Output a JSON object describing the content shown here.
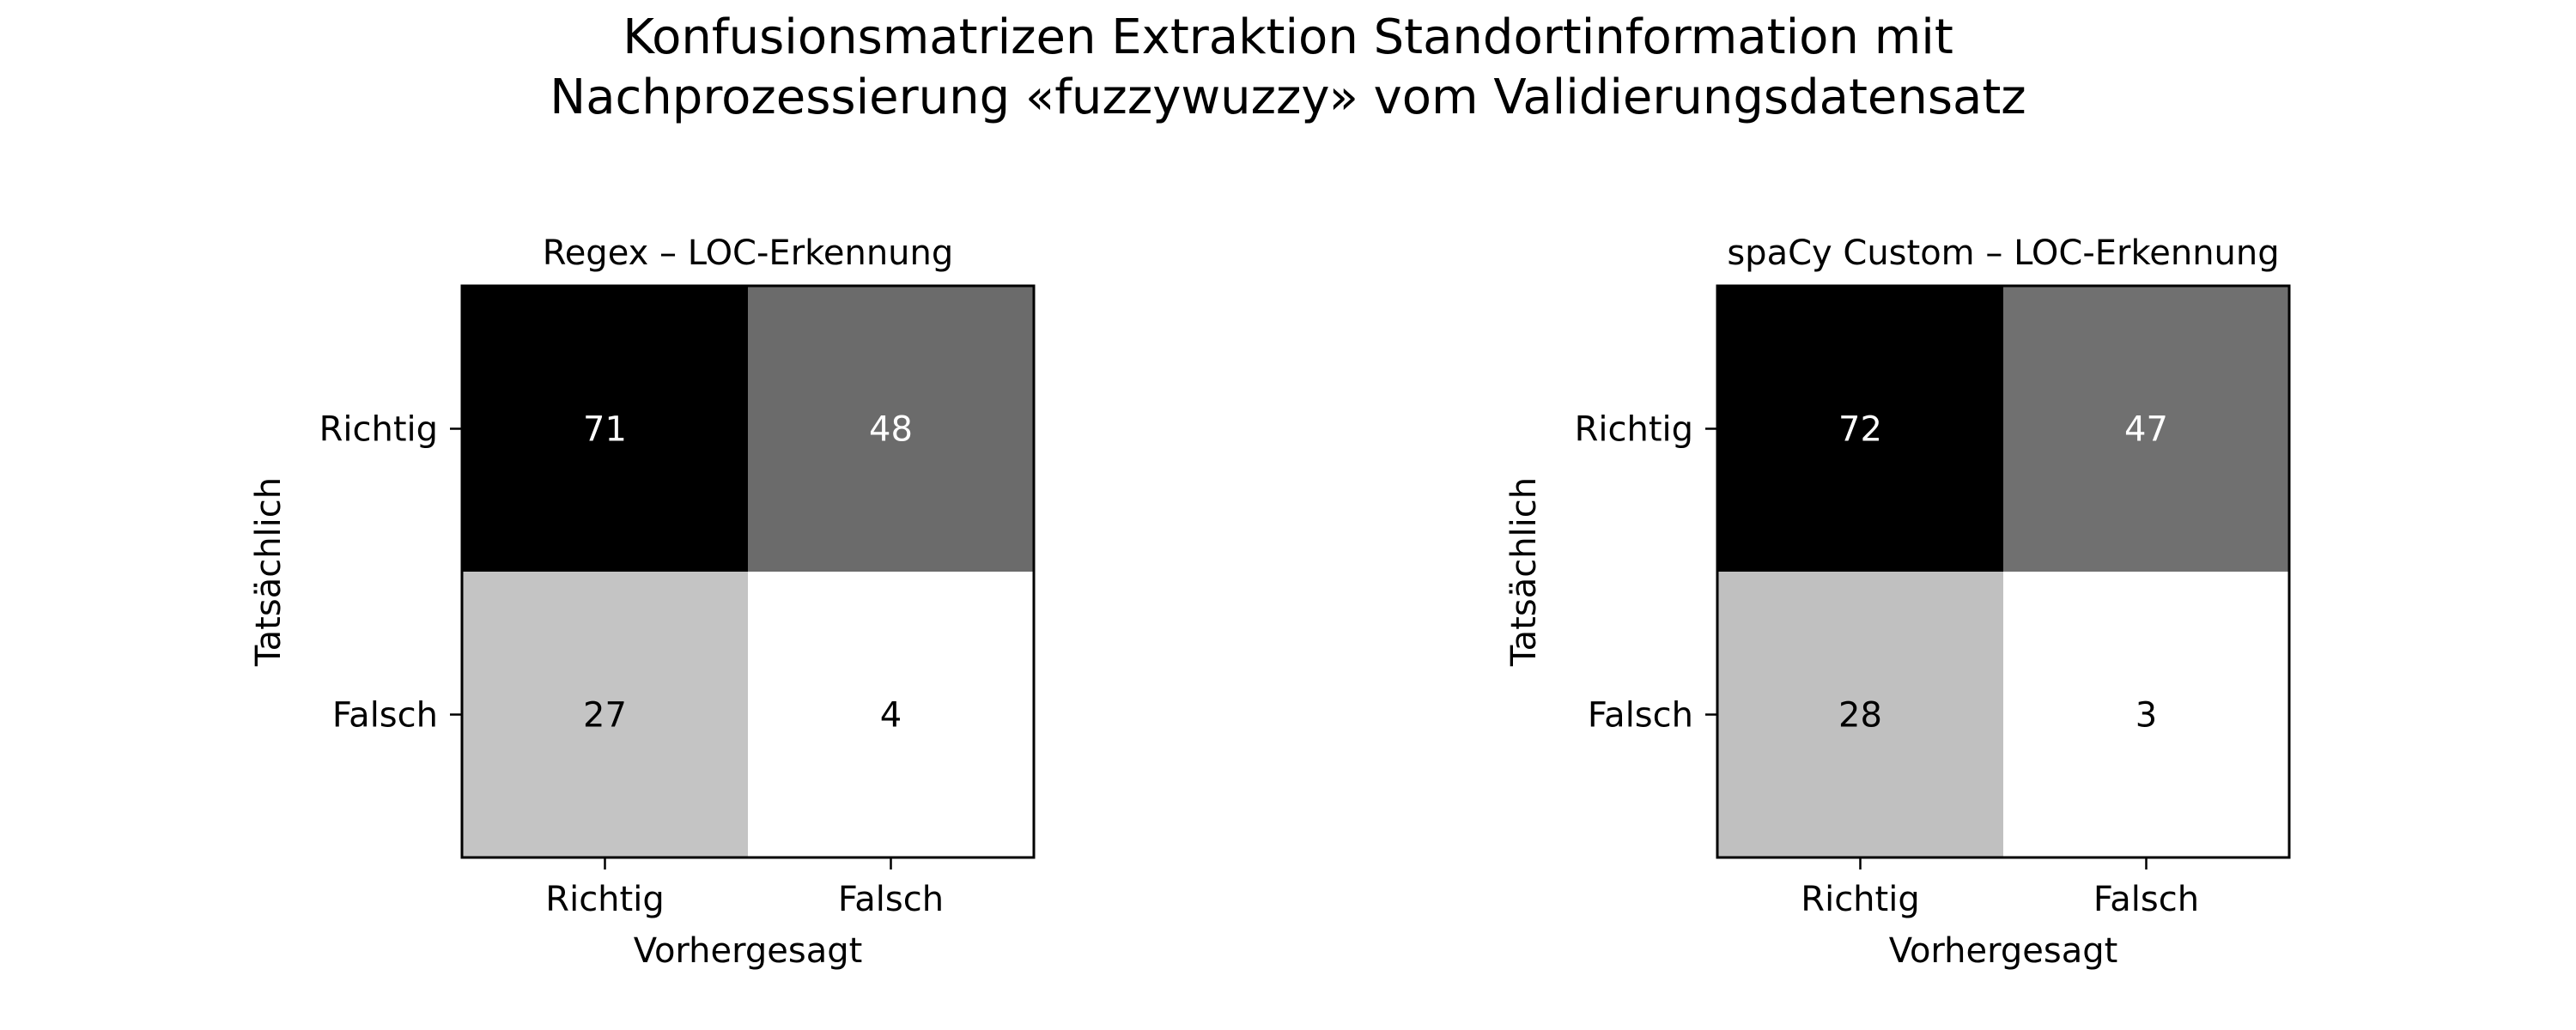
{
  "figure": {
    "title_line1": "Konfusionsmatrizen Extraktion Standortinformation mit",
    "title_line2": "Nachprozessierung «fuzzywuzzy» vom Validierungsdatensatz"
  },
  "chart_data": [
    {
      "type": "heatmap",
      "title": "Regex – LOC-Erkennung",
      "xlabel": "Vorhergesagt",
      "ylabel": "Tatsächlich",
      "x_categories": [
        "Richtig",
        "Falsch"
      ],
      "y_categories": [
        "Richtig",
        "Falsch"
      ],
      "values": [
        [
          71,
          48
        ],
        [
          27,
          4
        ]
      ],
      "colormap": "Greys",
      "colorbar": false
    },
    {
      "type": "heatmap",
      "title": "spaCy Custom – LOC-Erkennung",
      "xlabel": "Vorhergesagt",
      "ylabel": "Tatsächlich",
      "x_categories": [
        "Richtig",
        "Falsch"
      ],
      "y_categories": [
        "Richtig",
        "Falsch"
      ],
      "values": [
        [
          72,
          47
        ],
        [
          28,
          3
        ]
      ],
      "colormap": "Greys",
      "colorbar": false
    }
  ]
}
